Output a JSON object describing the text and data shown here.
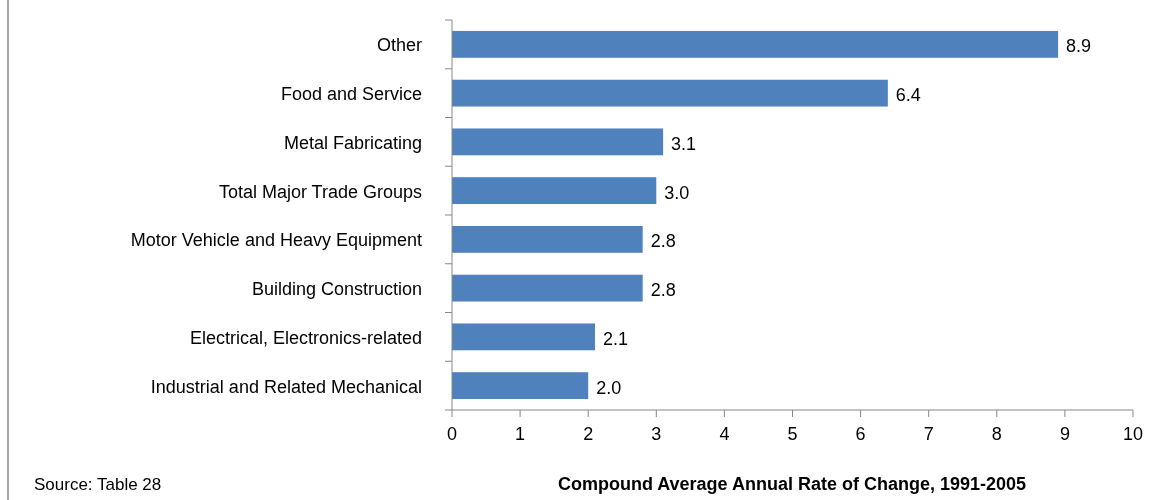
{
  "chart_data": {
    "type": "bar",
    "orientation": "horizontal",
    "categories": [
      "Other",
      "Food and Service",
      "Metal Fabricating",
      "Total Major Trade Groups",
      "Motor Vehicle and Heavy Equipment",
      "Building Construction",
      "Electrical, Electronics-related",
      "Industrial and Related Mechanical"
    ],
    "values": [
      8.9,
      6.4,
      3.1,
      3.0,
      2.8,
      2.8,
      2.1,
      2.0
    ],
    "value_labels": [
      "8.9",
      "6.4",
      "3.1",
      "3.0",
      "2.8",
      "2.8",
      "2.1",
      "2.0"
    ],
    "color": "#4f81bd",
    "xlim": [
      0,
      10
    ],
    "xticks": [
      0,
      1,
      2,
      3,
      4,
      5,
      6,
      7,
      8,
      9,
      10
    ],
    "xlabel": "Compound Average Annual Rate of Change, 1991-2005",
    "annotations": [
      "Source: Table 28"
    ]
  }
}
